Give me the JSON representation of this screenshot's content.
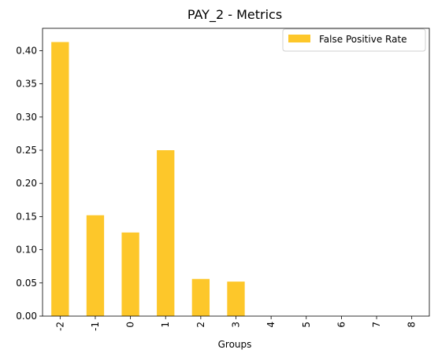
{
  "chart_data": {
    "type": "bar",
    "title": "PAY_2 - Metrics",
    "xlabel": "Groups",
    "ylabel": "",
    "categories": [
      "-2",
      "-1",
      "0",
      "1",
      "2",
      "3",
      "4",
      "5",
      "6",
      "7",
      "8"
    ],
    "series": [
      {
        "name": "False Positive Rate",
        "values": [
          0.413,
          0.152,
          0.126,
          0.25,
          0.056,
          0.052,
          0,
          0,
          0,
          0,
          0
        ],
        "color": "#fdc72a"
      }
    ],
    "yticks": [
      "0.00",
      "0.05",
      "0.10",
      "0.15",
      "0.20",
      "0.25",
      "0.30",
      "0.35",
      "0.40"
    ],
    "ytick_values": [
      0,
      0.05,
      0.1,
      0.15,
      0.2,
      0.25,
      0.3,
      0.35,
      0.4
    ],
    "ylim": [
      0,
      0.4337
    ],
    "legend_position": "top-right",
    "grid": false
  }
}
